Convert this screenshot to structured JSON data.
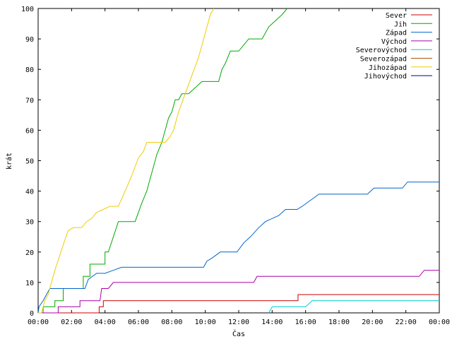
{
  "chart_data": {
    "type": "line",
    "title": "",
    "xlabel": "Čas",
    "ylabel": "krát",
    "ylim": [
      0,
      100
    ],
    "xlim": [
      0,
      24
    ],
    "x_ticks": [
      "00:00",
      "02:00",
      "04:00",
      "06:00",
      "08:00",
      "10:00",
      "12:00",
      "14:00",
      "16:00",
      "18:00",
      "20:00",
      "22:00",
      "00:00"
    ],
    "y_ticks": [
      "0",
      "10",
      "20",
      "30",
      "40",
      "50",
      "60",
      "70",
      "80",
      "90",
      "100"
    ],
    "grid": false,
    "legend_position": "top-right",
    "series": [
      {
        "name": "Sever",
        "color": "#cc0000",
        "points": [
          [
            0,
            0
          ],
          [
            3.65,
            0
          ],
          [
            3.65,
            2
          ],
          [
            3.9,
            2
          ],
          [
            3.9,
            4
          ],
          [
            15.55,
            4
          ],
          [
            15.55,
            6
          ],
          [
            24,
            6
          ]
        ]
      },
      {
        "name": "Jih",
        "color": "#00aa00",
        "points": [
          [
            0,
            0
          ],
          [
            0.3,
            0
          ],
          [
            0.3,
            2
          ],
          [
            1.0,
            2
          ],
          [
            1.0,
            4
          ],
          [
            1.5,
            4
          ],
          [
            1.5,
            8
          ],
          [
            2.7,
            8
          ],
          [
            2.7,
            12
          ],
          [
            3.1,
            12
          ],
          [
            3.1,
            16
          ],
          [
            4.0,
            16
          ],
          [
            4.0,
            20
          ],
          [
            4.2,
            20
          ],
          [
            4.5,
            25
          ],
          [
            4.8,
            30
          ],
          [
            5.8,
            30
          ],
          [
            6.2,
            36
          ],
          [
            6.5,
            40
          ],
          [
            6.8,
            46
          ],
          [
            7.1,
            52
          ],
          [
            7.4,
            56
          ],
          [
            7.6,
            60
          ],
          [
            7.8,
            64
          ],
          [
            8.0,
            66
          ],
          [
            8.2,
            70
          ],
          [
            8.4,
            70
          ],
          [
            8.6,
            72
          ],
          [
            9.0,
            72
          ],
          [
            9.4,
            74
          ],
          [
            9.8,
            76
          ],
          [
            10.8,
            76
          ],
          [
            11.0,
            80
          ],
          [
            11.2,
            82
          ],
          [
            11.5,
            86
          ],
          [
            12.0,
            86
          ],
          [
            12.3,
            88
          ],
          [
            12.6,
            90
          ],
          [
            13.4,
            90
          ],
          [
            13.8,
            94
          ],
          [
            14.2,
            96
          ],
          [
            14.6,
            98
          ],
          [
            14.9,
            100
          ]
        ]
      },
      {
        "name": "Západ",
        "color": "#0066cc",
        "points": [
          [
            0,
            0
          ],
          [
            0.05,
            2
          ],
          [
            0.3,
            4
          ],
          [
            0.5,
            6
          ],
          [
            0.7,
            8
          ],
          [
            2.8,
            8
          ],
          [
            3.0,
            11
          ],
          [
            3.5,
            13
          ],
          [
            4.0,
            13
          ],
          [
            4.5,
            14
          ],
          [
            5.0,
            15
          ],
          [
            9.9,
            15
          ],
          [
            10.1,
            17
          ],
          [
            10.4,
            18
          ],
          [
            10.9,
            20
          ],
          [
            11.9,
            20
          ],
          [
            12.3,
            23
          ],
          [
            12.7,
            25
          ],
          [
            13.2,
            28
          ],
          [
            13.6,
            30
          ],
          [
            14.4,
            32
          ],
          [
            14.8,
            34
          ],
          [
            15.5,
            34
          ],
          [
            15.8,
            35
          ],
          [
            16.3,
            37
          ],
          [
            16.8,
            39
          ],
          [
            19.7,
            39
          ],
          [
            20.1,
            41
          ],
          [
            21.8,
            41
          ],
          [
            22.1,
            43
          ],
          [
            24,
            43
          ]
        ]
      },
      {
        "name": "Východ",
        "color": "#aa00aa",
        "points": [
          [
            0,
            0
          ],
          [
            1.2,
            0
          ],
          [
            1.2,
            2
          ],
          [
            2.5,
            2
          ],
          [
            2.5,
            4
          ],
          [
            3.7,
            4
          ],
          [
            3.8,
            8
          ],
          [
            4.2,
            8
          ],
          [
            4.5,
            10
          ],
          [
            12.9,
            10
          ],
          [
            13.1,
            12
          ],
          [
            22.8,
            12
          ],
          [
            23.1,
            14
          ],
          [
            24,
            14
          ]
        ]
      },
      {
        "name": "Severovýchod",
        "color": "#00cccc",
        "points": [
          [
            13.8,
            0
          ],
          [
            14.0,
            2
          ],
          [
            16.0,
            2
          ],
          [
            16.4,
            4
          ],
          [
            24,
            4
          ]
        ]
      },
      {
        "name": "Severozápad",
        "color": "#aa5500",
        "points": []
      },
      {
        "name": "Jihozápad",
        "color": "#eecc00",
        "points": [
          [
            0,
            0
          ],
          [
            0.2,
            0
          ],
          [
            0.4,
            4
          ],
          [
            0.6,
            6
          ],
          [
            0.8,
            10
          ],
          [
            1.0,
            14
          ],
          [
            1.3,
            19
          ],
          [
            1.6,
            24
          ],
          [
            1.8,
            27
          ],
          [
            2.1,
            28
          ],
          [
            2.6,
            28
          ],
          [
            2.9,
            30
          ],
          [
            3.2,
            31
          ],
          [
            3.5,
            33
          ],
          [
            3.9,
            34
          ],
          [
            4.3,
            35
          ],
          [
            4.8,
            35
          ],
          [
            5.2,
            40
          ],
          [
            5.6,
            45
          ],
          [
            6.0,
            51
          ],
          [
            6.3,
            53
          ],
          [
            6.5,
            56
          ],
          [
            7.6,
            56
          ],
          [
            7.9,
            58
          ],
          [
            8.1,
            60
          ],
          [
            8.4,
            66
          ],
          [
            8.8,
            72
          ],
          [
            9.2,
            78
          ],
          [
            9.6,
            84
          ],
          [
            10.0,
            92
          ],
          [
            10.3,
            98
          ],
          [
            10.5,
            100
          ]
        ]
      },
      {
        "name": "Jihovýchod",
        "color": "#000088",
        "points": []
      }
    ]
  }
}
